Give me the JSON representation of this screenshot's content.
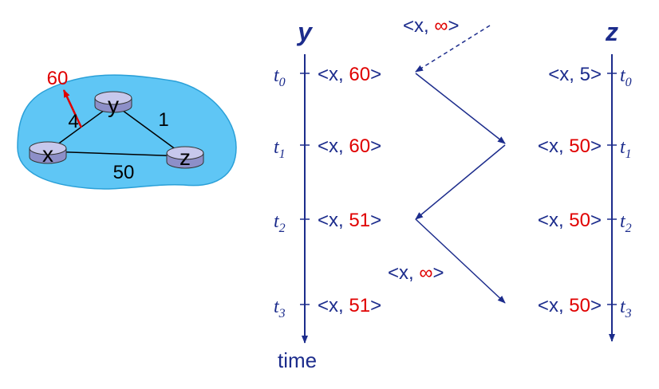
{
  "colors": {
    "navy": "#1c2c8c",
    "red": "#e00000",
    "cloud": "#5fc6f5",
    "router": "#c7c8ec",
    "black": "#000000"
  },
  "topology": {
    "nodes": {
      "x": "x",
      "y": "y",
      "z": "z"
    },
    "link_costs": {
      "x_y": "4",
      "y_z": "1",
      "x_z": "50"
    },
    "changed_cost": "60"
  },
  "timeline": {
    "y_label": "y",
    "z_label": "z",
    "time_label": "time",
    "incoming_msg": {
      "prefix": "<x, ",
      "value": "∞",
      "suffix": ">"
    },
    "poison_msg": {
      "prefix": "<x, ",
      "value": "∞",
      "suffix": ">"
    },
    "times": [
      {
        "t": "t",
        "sub": "0"
      },
      {
        "t": "t",
        "sub": "1"
      },
      {
        "t": "t",
        "sub": "2"
      },
      {
        "t": "t",
        "sub": "3"
      }
    ],
    "y_entries": [
      {
        "prefix": "<x, ",
        "value": "60",
        "suffix": ">",
        "red": true
      },
      {
        "prefix": "<x, ",
        "value": "60",
        "suffix": ">",
        "red": true
      },
      {
        "prefix": "<x, ",
        "value": "51",
        "suffix": ">",
        "red": true
      },
      {
        "prefix": "<x, ",
        "value": "51",
        "suffix": ">",
        "red": true
      }
    ],
    "z_entries": [
      {
        "prefix": "<x, ",
        "value": "5",
        "suffix": ">",
        "red": false
      },
      {
        "prefix": "<x, ",
        "value": "50",
        "suffix": ">",
        "red": true
      },
      {
        "prefix": "<x, ",
        "value": "50",
        "suffix": ">",
        "red": true
      },
      {
        "prefix": "<x, ",
        "value": "50",
        "suffix": ">",
        "red": true
      }
    ]
  }
}
